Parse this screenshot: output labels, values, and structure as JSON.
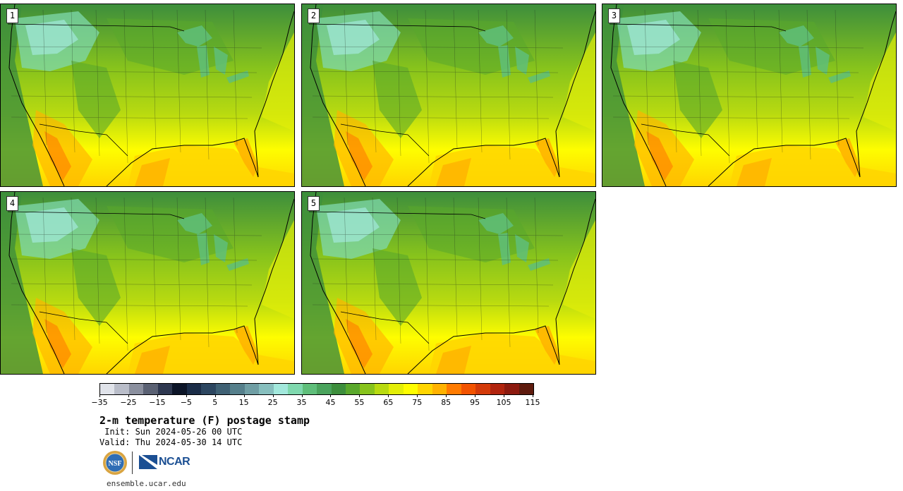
{
  "panels": [
    {
      "label": "1"
    },
    {
      "label": "2"
    },
    {
      "label": "3"
    },
    {
      "label": "4"
    },
    {
      "label": "5"
    }
  ],
  "colorbar": {
    "colors": [
      "#e0e3ea",
      "#b9bdc9",
      "#8a8f9e",
      "#5a6173",
      "#2e3850",
      "#0c1528",
      "#1b2d48",
      "#2c4660",
      "#3f6174",
      "#557f8b",
      "#6f9ea4",
      "#87bfbe",
      "#a2e8dc",
      "#7fd8ae",
      "#5fbe7a",
      "#4aa35c",
      "#3d8e3c",
      "#5aa82c",
      "#87c31c",
      "#b8da10",
      "#e3ee08",
      "#fefd00",
      "#ffd500",
      "#ffb200",
      "#ff7b00",
      "#f25300",
      "#d33a09",
      "#b1240e",
      "#8c1a0f",
      "#5e1b0e"
    ],
    "tick_labels": [
      "−35",
      "−25",
      "−15",
      "−5",
      "5",
      "15",
      "25",
      "35",
      "45",
      "55",
      "65",
      "75",
      "85",
      "95",
      "105",
      "115"
    ]
  },
  "title": "2-m temperature (F) postage stamp",
  "init": " Init: Sun 2024-05-26 00 UTC",
  "valid": "Valid: Thu 2024-05-30 14 UTC",
  "logos": {
    "nsf": "NSF",
    "ncar": "NCAR"
  },
  "site": "ensemble.ucar.edu"
}
